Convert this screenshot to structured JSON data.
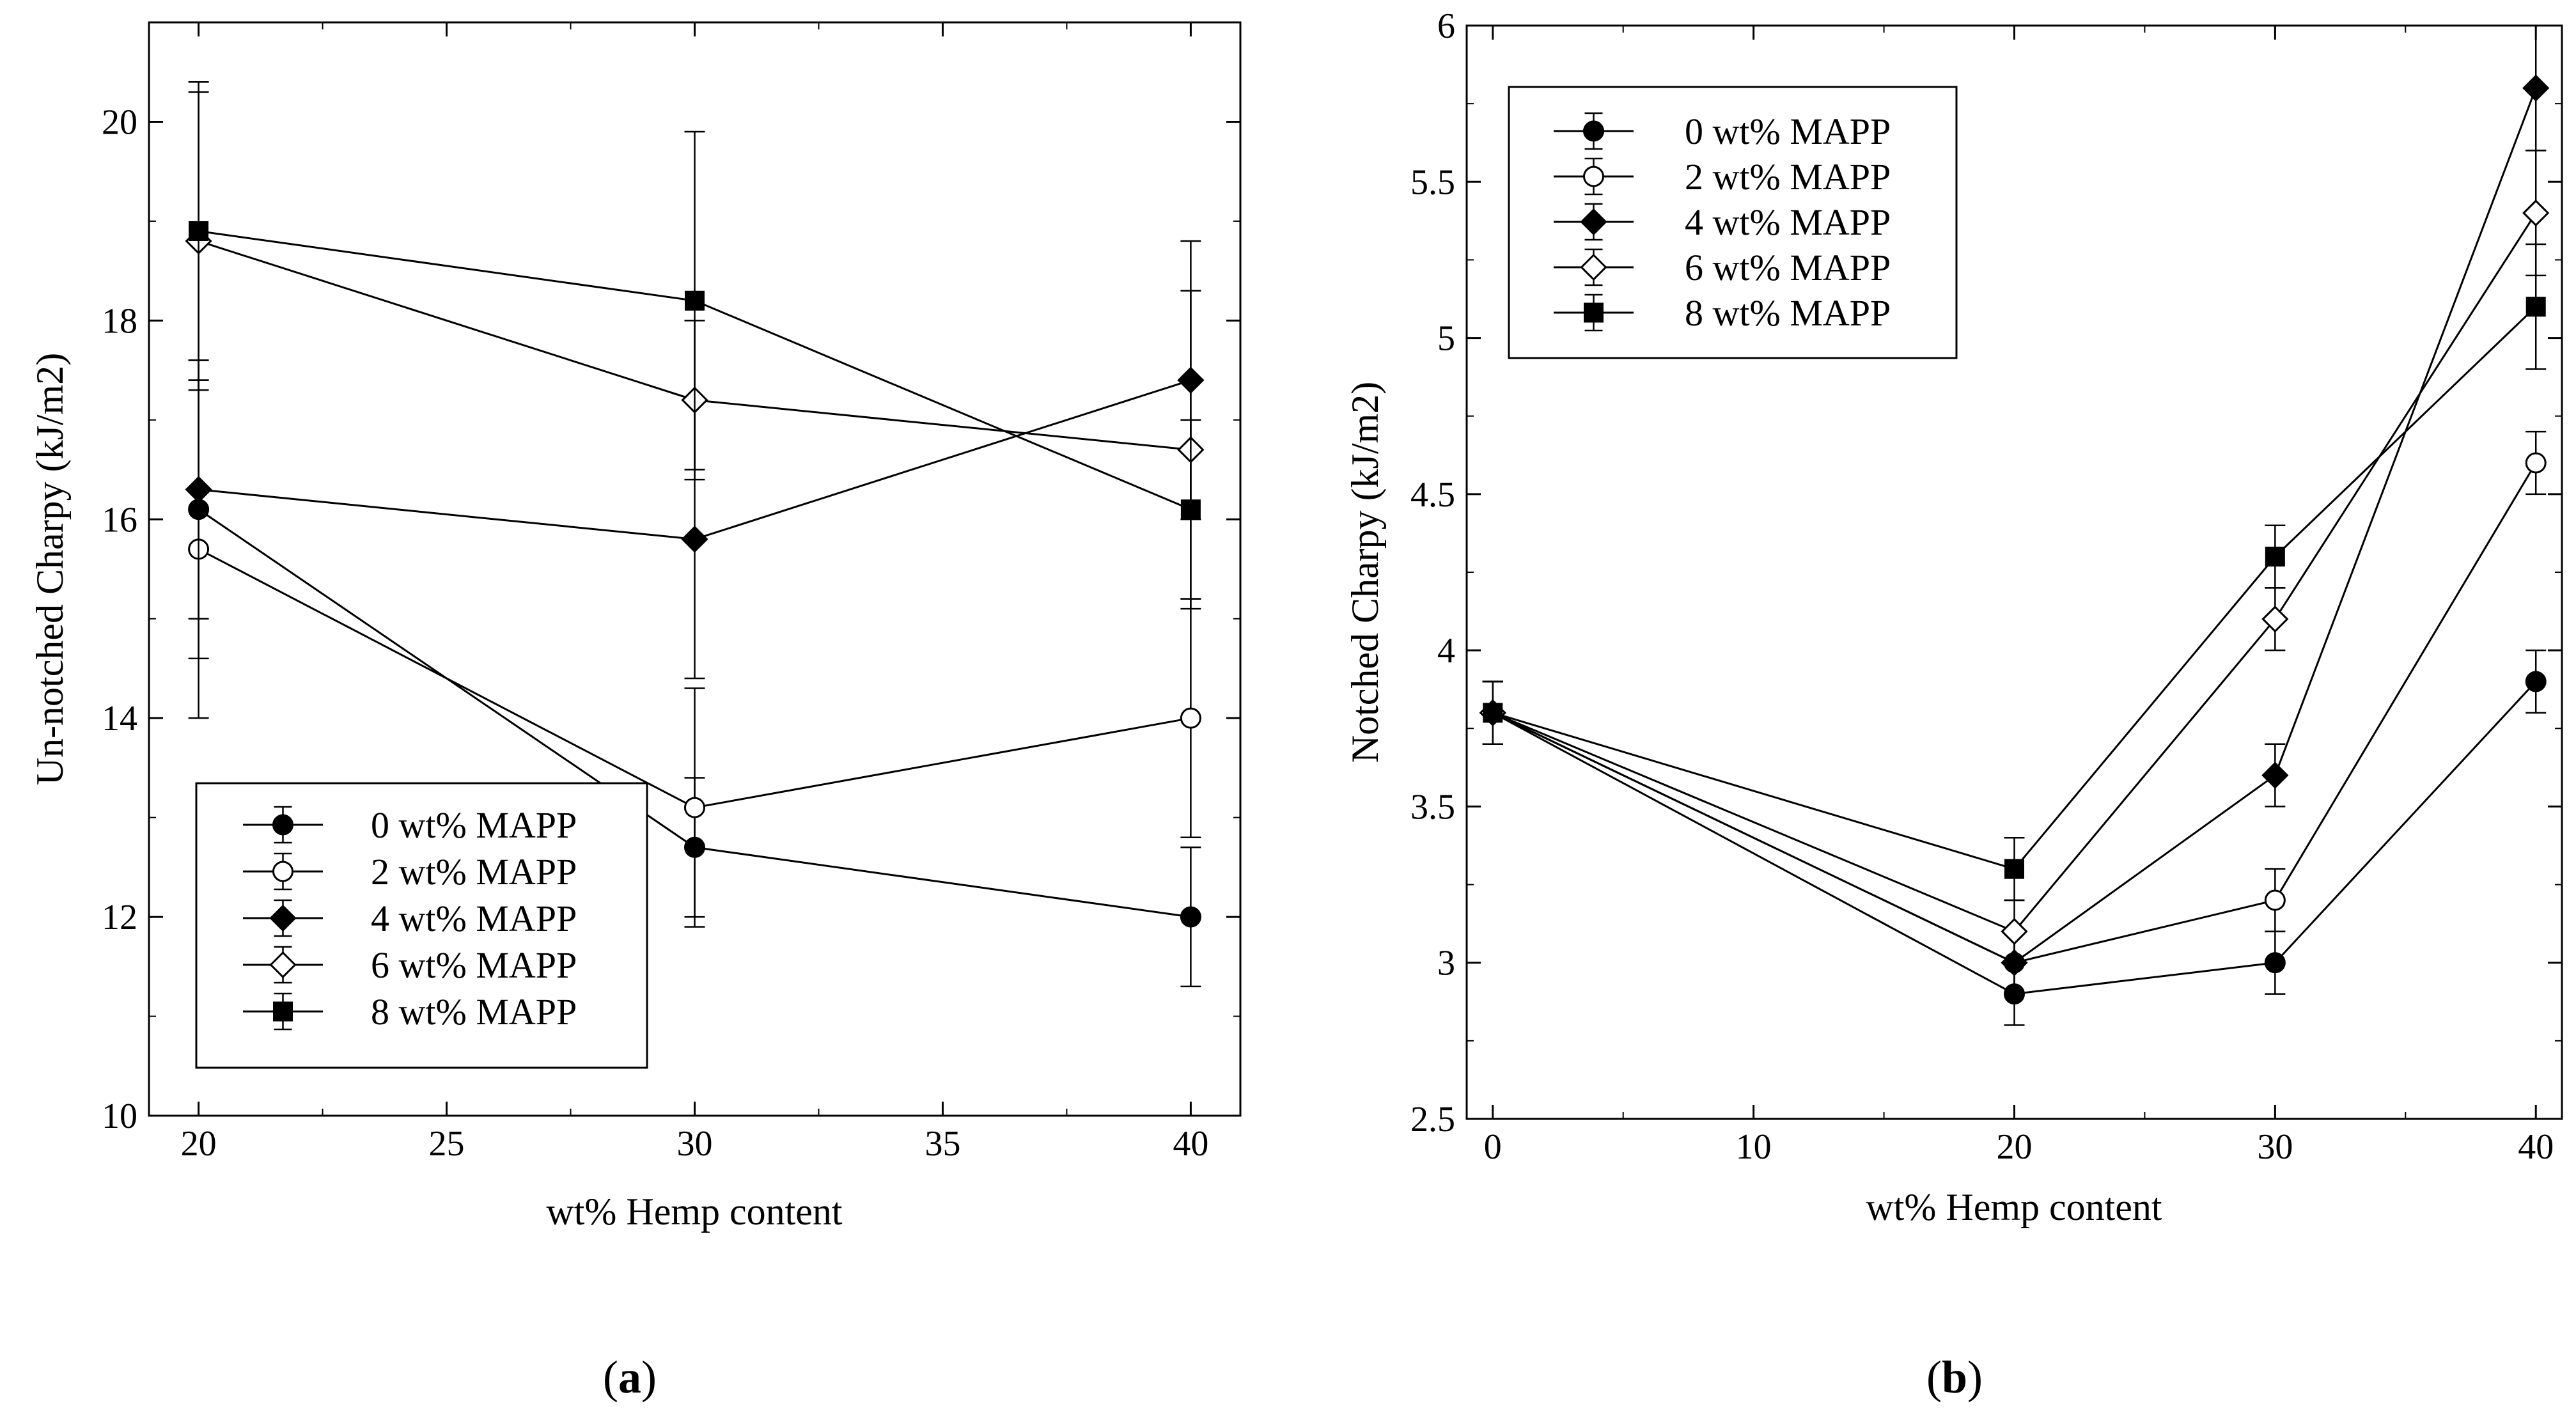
{
  "chart_data": [
    {
      "type": "line",
      "panel_label": "a",
      "xlabel": "wt% Hemp content",
      "ylabel": "Un-notched Charpy (kJ/m2)",
      "xlim": [
        19,
        41
      ],
      "ylim": [
        10,
        21
      ],
      "xticks": [
        20,
        25,
        30,
        35,
        40
      ],
      "yticks": [
        10,
        12,
        14,
        16,
        18,
        20
      ],
      "legend_position": "bottom-left",
      "x": [
        20,
        30,
        40
      ],
      "series": [
        {
          "name": "0 wt% MAPP",
          "marker": "circle-filled",
          "values": [
            16.1,
            12.7,
            12.0
          ],
          "errors": [
            1.5,
            0.7,
            0.7
          ]
        },
        {
          "name": "2 wt% MAPP",
          "marker": "circle-open",
          "values": [
            15.7,
            13.1,
            14.0
          ],
          "errors": [
            1.7,
            1.2,
            1.2
          ]
        },
        {
          "name": "4 wt% MAPP",
          "marker": "diamond-filled",
          "values": [
            16.3,
            15.8,
            17.4
          ],
          "errors": [
            1.3,
            1.4,
            1.4
          ]
        },
        {
          "name": "6 wt% MAPP",
          "marker": "diamond-open",
          "values": [
            18.8,
            17.2,
            16.7
          ],
          "errors": [
            1.5,
            0.8,
            1.6
          ]
        },
        {
          "name": "8 wt% MAPP",
          "marker": "square-filled",
          "values": [
            18.9,
            18.2,
            16.1
          ],
          "errors": [
            1.5,
            1.7,
            0.9
          ]
        }
      ]
    },
    {
      "type": "line",
      "panel_label": "b",
      "xlabel": "wt% Hemp content",
      "ylabel": "Notched Charpy (kJ/m2)",
      "xlim": [
        -1,
        41
      ],
      "ylim": [
        2.5,
        6
      ],
      "xticks": [
        0,
        10,
        20,
        30,
        40
      ],
      "yticks": [
        2.5,
        3,
        3.5,
        4,
        4.5,
        5,
        5.5,
        6
      ],
      "legend_position": "top-left",
      "x": [
        0,
        20,
        30,
        40
      ],
      "series": [
        {
          "name": "0 wt% MAPP",
          "marker": "circle-filled",
          "values": [
            3.8,
            2.9,
            3.0,
            3.9
          ],
          "errors": [
            0.1,
            0.1,
            0.1,
            0.1
          ]
        },
        {
          "name": "2 wt% MAPP",
          "marker": "circle-open",
          "values": [
            3.8,
            3.0,
            3.2,
            4.6
          ],
          "errors": [
            0.1,
            0.1,
            0.1,
            0.1
          ]
        },
        {
          "name": "4 wt% MAPP",
          "marker": "diamond-filled",
          "values": [
            3.8,
            3.0,
            3.6,
            5.8
          ],
          "errors": [
            0.1,
            0.1,
            0.1,
            0.2
          ]
        },
        {
          "name": "6 wt% MAPP",
          "marker": "diamond-open",
          "values": [
            3.8,
            3.1,
            4.1,
            5.4
          ],
          "errors": [
            0.1,
            0.1,
            0.1,
            0.2
          ]
        },
        {
          "name": "8 wt% MAPP",
          "marker": "square-filled",
          "values": [
            3.8,
            3.3,
            4.3,
            5.1
          ],
          "errors": [
            0.1,
            0.1,
            0.1,
            0.2
          ]
        }
      ]
    }
  ]
}
